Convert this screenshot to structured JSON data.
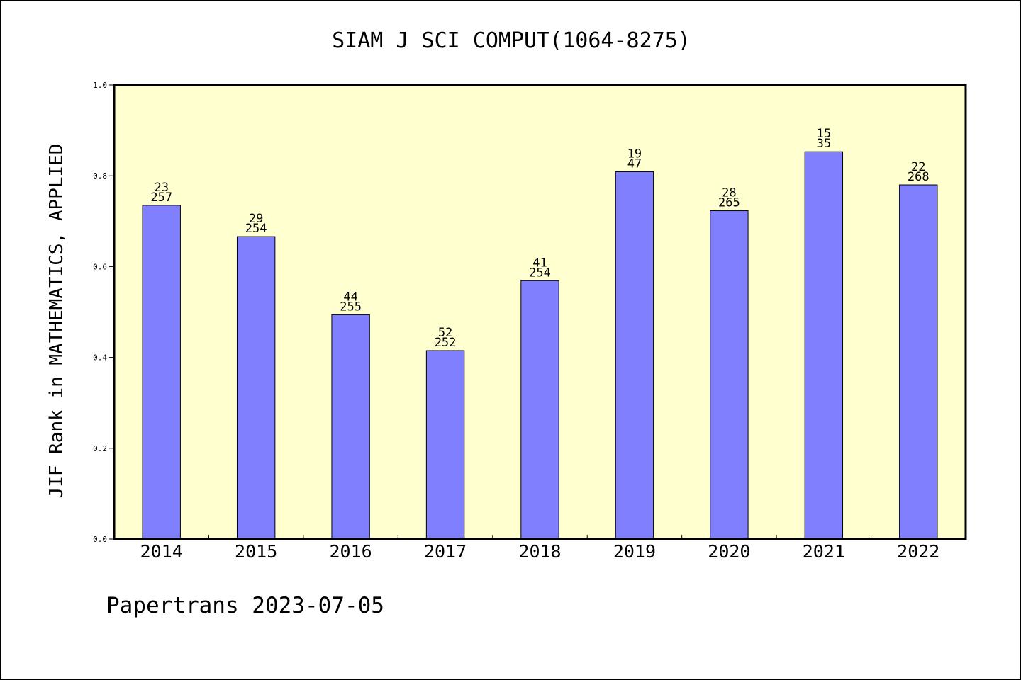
{
  "chart_data": {
    "type": "bar",
    "title": "SIAM J SCI COMPUT(1064-8275)",
    "xlabel": "",
    "ylabel": "JIF Rank in MATHEMATICS, APPLIED",
    "ylim": [
      0,
      1.0
    ],
    "yticks": [
      "0.0",
      "0.2",
      "0.4",
      "0.6",
      "0.8",
      "1.0"
    ],
    "categories": [
      "2014",
      "2015",
      "2016",
      "2017",
      "2018",
      "2019",
      "2020",
      "2021",
      "2022"
    ],
    "values": [
      0.735,
      0.666,
      0.494,
      0.415,
      0.569,
      0.809,
      0.723,
      0.853,
      0.78
    ],
    "labels_top": [
      "23",
      "29",
      "44",
      "52",
      "41",
      "19",
      "28",
      "15",
      "22"
    ],
    "labels_bottom": [
      "257",
      "254",
      "255",
      "252",
      "254",
      "47",
      "265",
      "35",
      "268"
    ],
    "grid": false,
    "colors": {
      "bar": "#8080ff",
      "plot_bg": "#ffffd0",
      "border": "#000000"
    }
  },
  "footer": "Papertrans 2023-07-05"
}
